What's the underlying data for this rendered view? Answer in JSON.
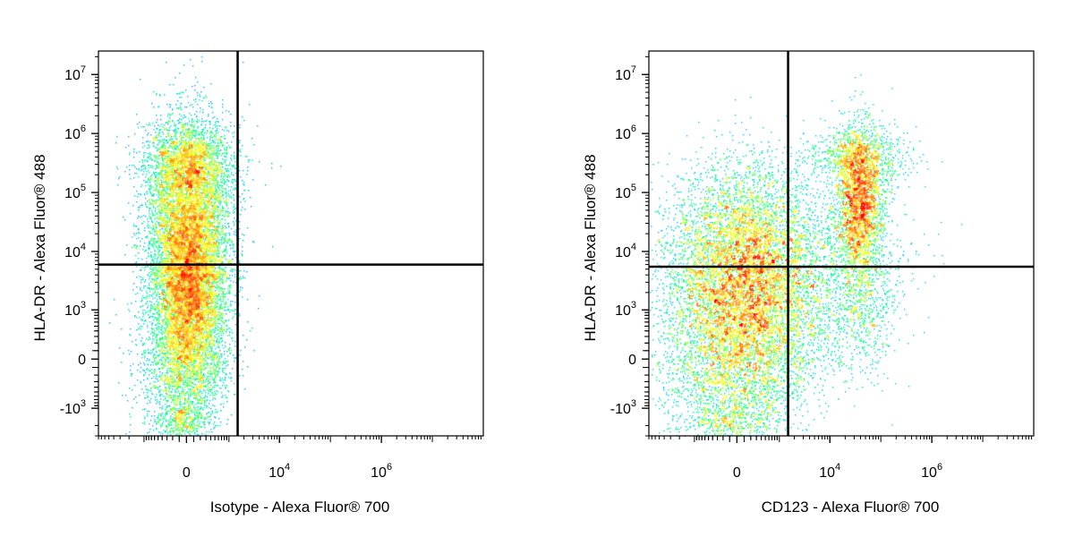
{
  "chart_data": [
    {
      "type": "scatter",
      "subtype": "flow-cytometry-density-dot-plot",
      "xlabel": "Isotype - Alexa Fluor® 700",
      "ylabel": "HLA-DR - Alexa Fluor® 488",
      "x_scale": "biexponential",
      "y_scale": "biexponential",
      "x_ticks": [
        {
          "value": 0,
          "base": "0",
          "exp": ""
        },
        {
          "value": 10000,
          "base": "10",
          "exp": "4"
        },
        {
          "value": 1000000,
          "base": "10",
          "exp": "6"
        }
      ],
      "y_ticks": [
        {
          "value": -1000,
          "base": "-10",
          "exp": "3"
        },
        {
          "value": 0,
          "base": "0",
          "exp": ""
        },
        {
          "value": 1000,
          "base": "10",
          "exp": "3"
        },
        {
          "value": 10000,
          "base": "10",
          "exp": "4"
        },
        {
          "value": 100000,
          "base": "10",
          "exp": "5"
        },
        {
          "value": 1000000,
          "base": "10",
          "exp": "6"
        },
        {
          "value": 10000000,
          "base": "10",
          "exp": "7"
        }
      ],
      "quadrant_gate": {
        "x": 1500,
        "y": 6000
      },
      "populations": [
        {
          "x_center": 50,
          "y_center": 2000,
          "relative_density": 1.0
        },
        {
          "x_center": 50,
          "y_center": 40000,
          "relative_density": 0.6
        }
      ],
      "color_scale": [
        "#0000ff",
        "#00c8ff",
        "#00ff80",
        "#ffff00",
        "#ff8000",
        "#ff0000"
      ],
      "grid": false
    },
    {
      "type": "scatter",
      "subtype": "flow-cytometry-density-dot-plot",
      "xlabel": "CD123 - Alexa Fluor® 700",
      "ylabel": "HLA-DR - Alexa Fluor® 488",
      "x_scale": "biexponential",
      "y_scale": "biexponential",
      "x_ticks": [
        {
          "value": 0,
          "base": "0",
          "exp": ""
        },
        {
          "value": 10000,
          "base": "10",
          "exp": "4"
        },
        {
          "value": 1000000,
          "base": "10",
          "exp": "6"
        }
      ],
      "y_ticks": [
        {
          "value": -1000,
          "base": "-10",
          "exp": "3"
        },
        {
          "value": 0,
          "base": "0",
          "exp": ""
        },
        {
          "value": 1000,
          "base": "10",
          "exp": "3"
        },
        {
          "value": 10000,
          "base": "10",
          "exp": "4"
        },
        {
          "value": 100000,
          "base": "10",
          "exp": "5"
        },
        {
          "value": 1000000,
          "base": "10",
          "exp": "6"
        },
        {
          "value": 10000000,
          "base": "10",
          "exp": "7"
        }
      ],
      "quadrant_gate": {
        "x": 1500,
        "y": 5500
      },
      "populations": [
        {
          "x_center": 300,
          "y_center": 2000,
          "relative_density": 1.0
        },
        {
          "x_center": 25000,
          "y_center": 60000,
          "relative_density": 0.8
        },
        {
          "x_center": 20000,
          "y_center": 1500,
          "relative_density": 0.25
        }
      ],
      "color_scale": [
        "#0000ff",
        "#00c8ff",
        "#00ff80",
        "#ffff00",
        "#ff8000",
        "#ff0000"
      ],
      "grid": false
    }
  ]
}
